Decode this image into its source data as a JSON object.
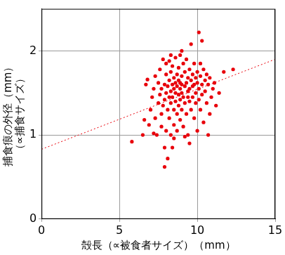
{
  "chart_data": {
    "type": "scatter",
    "x_label": "殻長（∝被食者サイズ）（mm）",
    "y_label": [
      "捕食痕の外径（mm）",
      "（∝捕食サイズ）"
    ],
    "color": "#e8000b",
    "marker": "circle",
    "x": [
      5.8,
      6.5,
      6.7,
      6.8,
      6.9,
      7.0,
      7.1,
      7.2,
      7.3,
      7.3,
      7.4,
      7.5,
      7.5,
      7.6,
      7.6,
      7.7,
      7.7,
      7.8,
      7.8,
      7.9,
      7.9,
      7.9,
      7.9,
      8.0,
      8.0,
      8.0,
      8.0,
      8.1,
      8.1,
      8.1,
      8.2,
      8.2,
      8.2,
      8.2,
      8.3,
      8.3,
      8.3,
      8.3,
      8.4,
      8.4,
      8.4,
      8.4,
      8.5,
      8.5,
      8.5,
      8.5,
      8.6,
      8.6,
      8.6,
      8.6,
      8.7,
      8.7,
      8.7,
      8.7,
      8.8,
      8.8,
      8.8,
      8.8,
      8.9,
      8.9,
      8.9,
      8.9,
      9.0,
      9.0,
      9.0,
      9.0,
      9.1,
      9.1,
      9.1,
      9.2,
      9.2,
      9.2,
      9.3,
      9.3,
      9.3,
      9.4,
      9.4,
      9.4,
      9.5,
      9.5,
      9.5,
      9.5,
      9.6,
      9.6,
      9.6,
      9.7,
      9.7,
      9.7,
      9.8,
      9.8,
      9.8,
      9.9,
      9.9,
      9.9,
      10.0,
      10.0,
      10.0,
      10.1,
      10.1,
      10.1,
      10.2,
      10.2,
      10.3,
      10.3,
      10.3,
      10.4,
      10.4,
      10.5,
      10.5,
      10.6,
      10.6,
      10.7,
      10.7,
      10.8,
      10.9,
      11.0,
      11.1,
      11.2,
      11.4,
      11.7,
      12.3,
      7.2,
      6.6,
      8.5,
      9.2,
      10.8,
      9.0,
      8.3,
      7.7,
      8.9,
      9.4,
      10.2
    ],
    "values": [
      0.92,
      1.0,
      1.6,
      1.66,
      1.12,
      1.3,
      1.45,
      1.55,
      1.2,
      1.7,
      1.0,
      1.38,
      1.62,
      1.48,
      1.78,
      1.25,
      1.55,
      1.9,
      1.35,
      0.62,
      0.85,
      1.42,
      1.6,
      1.05,
      1.5,
      1.72,
      1.85,
      1.3,
      1.58,
      0.72,
      1.45,
      1.65,
      1.2,
      1.88,
      1.52,
      1.38,
      1.0,
      1.75,
      0.85,
      1.6,
      1.45,
      1.82,
      1.3,
      1.55,
      1.68,
      1.12,
      1.4,
      1.62,
      1.92,
      1.5,
      1.25,
      1.58,
      1.72,
      1.05,
      1.48,
      1.35,
      1.65,
      1.8,
      1.55,
      1.42,
      1.18,
      1.95,
      1.6,
      1.3,
      1.7,
      1.5,
      1.45,
      1.85,
      1.1,
      1.58,
      1.38,
      1.75,
      1.62,
      1.25,
      1.9,
      1.52,
      1.68,
      1.0,
      1.4,
      0.9,
      1.78,
      1.55,
      1.65,
      2.08,
      1.3,
      1.58,
      1.72,
      1.45,
      1.6,
      1.85,
      1.2,
      1.5,
      1.68,
      1.38,
      1.62,
      1.75,
      1.05,
      2.22,
      1.55,
      1.42,
      1.7,
      1.3,
      2.12,
      1.6,
      1.48,
      1.78,
      1.15,
      1.65,
      1.52,
      1.72,
      1.38,
      1.0,
      1.6,
      1.68,
      1.45,
      1.55,
      1.62,
      1.35,
      1.5,
      1.75,
      1.78,
      1.02,
      1.18,
      0.96,
      0.98,
      1.25,
      2.0,
      1.95,
      1.1,
      1.62,
      1.45,
      1.85
    ],
    "fit_line": {
      "x": [
        0,
        15
      ],
      "values": [
        0.83,
        1.9
      ],
      "color": "#e8000b",
      "line_style": "dotted"
    },
    "xlim": [
      0,
      15
    ],
    "xticks": [
      0,
      5,
      10,
      15
    ],
    "ylim": [
      0,
      2.5
    ],
    "yticks": [
      0,
      1,
      2
    ],
    "grid": true
  }
}
